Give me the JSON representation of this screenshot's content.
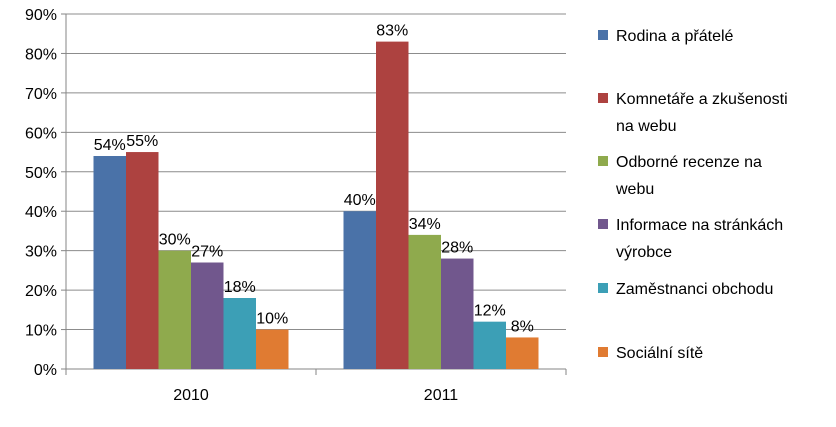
{
  "chart_data": {
    "type": "bar",
    "categories": [
      "2010",
      "2011"
    ],
    "series": [
      {
        "name": "Rodina a přátelé",
        "color": "#4a72a8",
        "values": [
          54,
          40
        ]
      },
      {
        "name": "Komnetáře  a zkušenosti na webu",
        "name_lines": [
          "Komnetáře  a zkušenosti",
          "na webu"
        ],
        "color": "#ad4240",
        "values": [
          55,
          83
        ]
      },
      {
        "name": "Odborné recenze na webu",
        "name_lines": [
          "Odborné recenze na",
          "webu"
        ],
        "color": "#8faa4d",
        "values": [
          30,
          34
        ]
      },
      {
        "name": "Informace na stránkách výrobce",
        "name_lines": [
          "Informace na stránkách",
          "výrobce"
        ],
        "color": "#71578d",
        "values": [
          27,
          28
        ]
      },
      {
        "name": "Zaměstnanci obchodu",
        "color": "#3c9fb6",
        "values": [
          18,
          12
        ]
      },
      {
        "name": "Sociální sítě",
        "color": "#e07b32",
        "values": [
          10,
          8
        ]
      }
    ],
    "ylim": [
      0,
      90
    ],
    "yticks": [
      0,
      10,
      20,
      30,
      40,
      50,
      60,
      70,
      80,
      90
    ],
    "y_format": "percent",
    "grid": true,
    "legend": "right"
  }
}
